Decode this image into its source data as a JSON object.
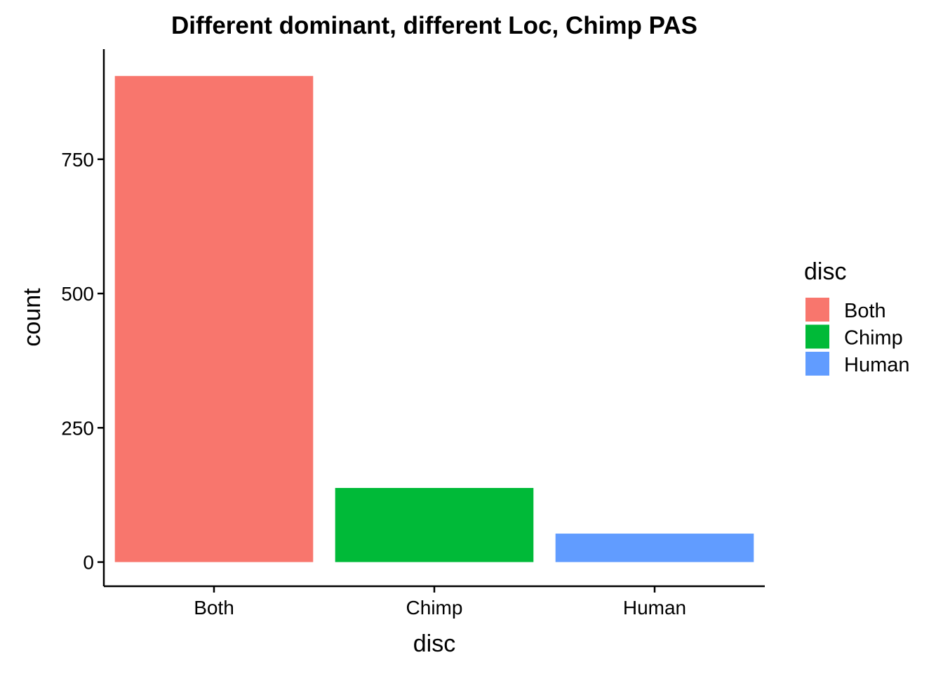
{
  "chart_data": {
    "type": "bar",
    "title": "Different dominant, different Loc, Chimp PAS",
    "xlabel": "disc",
    "ylabel": "count",
    "categories": [
      "Both",
      "Chimp",
      "Human"
    ],
    "values": [
      905,
      138,
      53
    ],
    "colors": [
      "#F8766D",
      "#00BA38",
      "#619CFF"
    ],
    "yticks": [
      0,
      250,
      500,
      750
    ],
    "ytick_labels": [
      "0",
      "250",
      "500",
      "750"
    ],
    "ylim": [
      -45,
      955
    ],
    "grid": false,
    "legend": {
      "title": "disc",
      "placement": "right",
      "entries": [
        "Both",
        "Chimp",
        "Human"
      ]
    }
  }
}
